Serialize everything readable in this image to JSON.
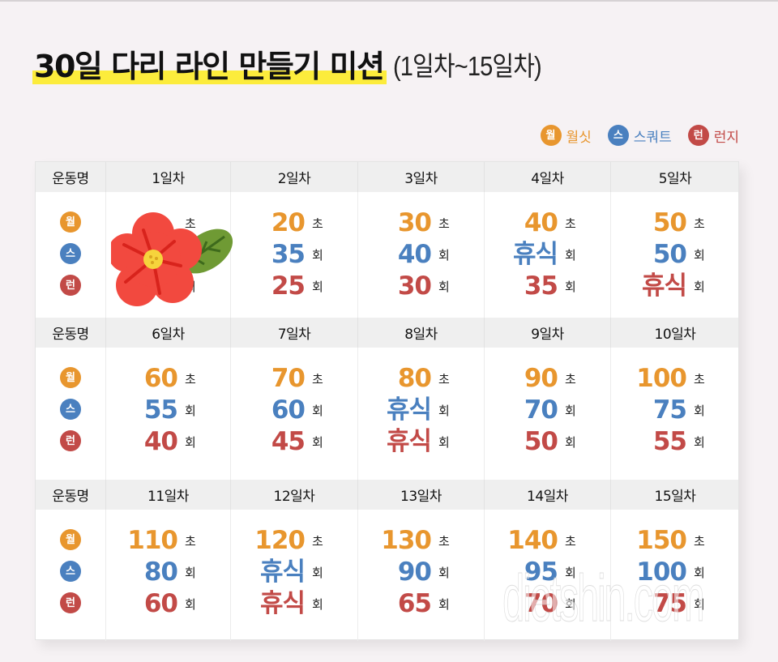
{
  "title": {
    "main": "30일 다리 라인 만들기 미션",
    "sub": "(1일차~15일차)"
  },
  "legend": [
    {
      "badge": "월",
      "label": "월싯",
      "color": "#e8962e"
    },
    {
      "badge": "스",
      "label": "스쿼트",
      "color": "#4a80bf"
    },
    {
      "badge": "런",
      "label": "런지",
      "color": "#c24a47"
    }
  ],
  "row_header_label": "운동명",
  "exercise_badges": [
    "월",
    "스",
    "런"
  ],
  "units": {
    "wall_sit": "초",
    "squat": "회",
    "lunge": "회"
  },
  "blocks": [
    {
      "days": [
        {
          "label": "1일차",
          "wall_sit": "",
          "squat": "",
          "lunge": "",
          "obscured": true
        },
        {
          "label": "2일차",
          "wall_sit": "20",
          "squat": "35",
          "lunge": "25"
        },
        {
          "label": "3일차",
          "wall_sit": "30",
          "squat": "40",
          "lunge": "30"
        },
        {
          "label": "4일차",
          "wall_sit": "40",
          "squat": "휴식",
          "lunge": "35"
        },
        {
          "label": "5일차",
          "wall_sit": "50",
          "squat": "50",
          "lunge": "휴식"
        }
      ]
    },
    {
      "days": [
        {
          "label": "6일차",
          "wall_sit": "60",
          "squat": "55",
          "lunge": "40"
        },
        {
          "label": "7일차",
          "wall_sit": "70",
          "squat": "60",
          "lunge": "45"
        },
        {
          "label": "8일차",
          "wall_sit": "80",
          "squat": "휴식",
          "lunge": "휴식"
        },
        {
          "label": "9일차",
          "wall_sit": "90",
          "squat": "70",
          "lunge": "50"
        },
        {
          "label": "10일차",
          "wall_sit": "100",
          "squat": "75",
          "lunge": "55"
        }
      ]
    },
    {
      "days": [
        {
          "label": "11일차",
          "wall_sit": "110",
          "squat": "80",
          "lunge": "60"
        },
        {
          "label": "12일차",
          "wall_sit": "120",
          "squat": "휴식",
          "lunge": "휴식"
        },
        {
          "label": "13일차",
          "wall_sit": "130",
          "squat": "90",
          "lunge": "65"
        },
        {
          "label": "14일차",
          "wall_sit": "140",
          "squat": "95",
          "lunge": "70"
        },
        {
          "label": "15일차",
          "wall_sit": "150",
          "squat": "100",
          "lunge": "75"
        }
      ]
    }
  ],
  "sticker": "flower-sticker",
  "watermark": "dietshin.com"
}
